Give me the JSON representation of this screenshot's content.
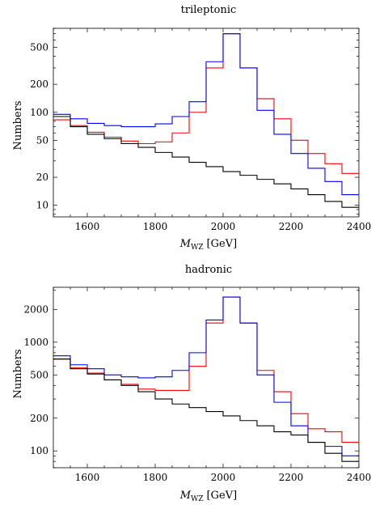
{
  "chart_data": [
    {
      "type": "line",
      "title": "trileptonic",
      "xlabel_main": "M",
      "xlabel_sub": "WZ",
      "xlabel_unit": "[GeV]",
      "ylabel": "Numbers",
      "yscale": "log",
      "xlim": [
        1500,
        2400
      ],
      "ylim": [
        7.5,
        800
      ],
      "xticks": [
        1600,
        1800,
        2000,
        2200,
        2400
      ],
      "yticks": [
        10,
        20,
        50,
        100,
        200,
        500
      ],
      "bin_edges": [
        1500,
        1550,
        1600,
        1650,
        1700,
        1750,
        1800,
        1850,
        1900,
        1950,
        2000,
        2050,
        2100,
        2150,
        2200,
        2250,
        2300,
        2350,
        2400
      ],
      "series": [
        {
          "color": "#ff0000",
          "values": [
            83,
            72,
            61,
            54,
            49,
            46,
            48,
            60,
            100,
            300,
            700,
            300,
            140,
            85,
            50,
            36,
            28,
            22
          ]
        },
        {
          "color": "#0000ff",
          "values": [
            95,
            85,
            76,
            72,
            70,
            70,
            75,
            90,
            130,
            350,
            700,
            300,
            105,
            58,
            36,
            25,
            18,
            13
          ]
        },
        {
          "color": "#000000",
          "values": [
            90,
            70,
            58,
            52,
            46,
            42,
            37,
            33,
            29,
            26,
            23,
            21,
            19,
            17,
            15,
            13,
            11,
            9.5
          ]
        }
      ]
    },
    {
      "type": "line",
      "title": "hadronic",
      "xlabel_main": "M",
      "xlabel_sub": "WZ",
      "xlabel_unit": "[GeV]",
      "ylabel": "Numbers",
      "yscale": "log",
      "xlim": [
        1500,
        2400
      ],
      "ylim": [
        70,
        3200
      ],
      "xticks": [
        1600,
        1800,
        2000,
        2200,
        2400
      ],
      "yticks": [
        100,
        200,
        500,
        1000,
        2000
      ],
      "bin_edges": [
        1500,
        1550,
        1600,
        1650,
        1700,
        1750,
        1800,
        1850,
        1900,
        1950,
        2000,
        2050,
        2100,
        2150,
        2200,
        2250,
        2300,
        2350,
        2400
      ],
      "series": [
        {
          "color": "#ff0000",
          "values": [
            700,
            580,
            520,
            450,
            410,
            370,
            360,
            360,
            600,
            1500,
            2600,
            1500,
            550,
            350,
            220,
            160,
            150,
            120
          ]
        },
        {
          "color": "#0000ff",
          "values": [
            750,
            620,
            570,
            500,
            480,
            470,
            480,
            550,
            800,
            1600,
            2600,
            1500,
            500,
            280,
            170,
            120,
            110,
            90
          ]
        },
        {
          "color": "#000000",
          "values": [
            700,
            570,
            510,
            450,
            400,
            350,
            300,
            270,
            250,
            230,
            210,
            190,
            170,
            150,
            140,
            120,
            95,
            80
          ]
        }
      ]
    }
  ]
}
